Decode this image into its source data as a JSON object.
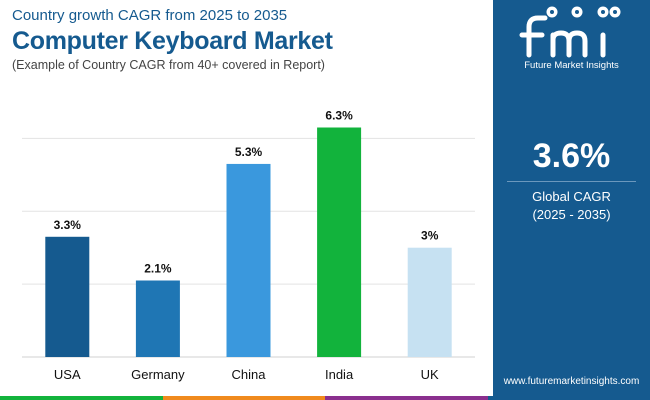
{
  "header": {
    "kicker": "Country growth CAGR from 2025 to 2035",
    "title": "Computer Keyboard Market",
    "note": "(Example of Country CAGR from 40+ covered in Report)"
  },
  "chart_data": {
    "type": "bar",
    "categories": [
      "USA",
      "Germany",
      "China",
      "India",
      "UK"
    ],
    "values": [
      3.3,
      2.1,
      5.3,
      6.3,
      3.0
    ],
    "value_labels": [
      "3.3%",
      "2.1%",
      "5.3%",
      "6.3%",
      "3%"
    ],
    "colors": [
      "#155a8f",
      "#1f76b4",
      "#3a98dd",
      "#12b33c",
      "#c6e1f2"
    ],
    "ylim": [
      0,
      7
    ],
    "grid": true,
    "legend": "none"
  },
  "side_panel": {
    "logo_name": "Future Market Insights",
    "stat_value": "3.6%",
    "stat_label": "Global CAGR",
    "stat_period": "(2025 - 2035)",
    "website": "www.futuremarketinsights.com"
  },
  "colors": {
    "brand": "#155a8f",
    "bottom_bar": [
      "#12b33c",
      "#f08a1d",
      "#8a2f8e",
      "#155a8f"
    ]
  }
}
